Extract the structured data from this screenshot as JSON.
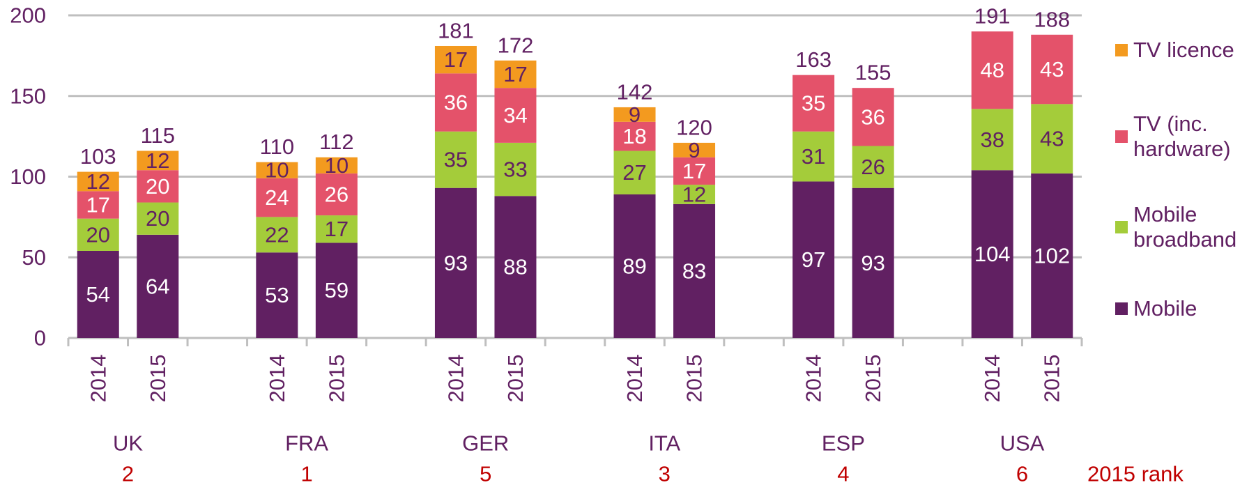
{
  "chart_data": {
    "type": "stacked_bar",
    "categories": [
      "2014",
      "2015",
      null,
      "2014",
      "2015",
      null,
      "2014",
      "2015",
      null,
      "2014",
      "2015",
      null,
      "2014",
      "2015",
      null,
      "2014",
      "2015"
    ],
    "groups": [
      "UK",
      "FRA",
      "GER",
      "ITA",
      "ESP",
      "USA"
    ],
    "ranks": [
      2,
      1,
      5,
      3,
      4,
      6
    ],
    "rank_label": "2015 rank",
    "series": [
      {
        "name": "Mobile",
        "color": "#612062",
        "label_color": "#ffffff",
        "values": [
          54,
          64,
          null,
          53,
          59,
          null,
          93,
          88,
          null,
          89,
          83,
          null,
          97,
          93,
          null,
          104,
          102
        ]
      },
      {
        "name": "Mobile broadband",
        "color": "#a4cc3a",
        "label_color": "#612062",
        "values": [
          20,
          20,
          null,
          22,
          17,
          null,
          35,
          33,
          null,
          27,
          12,
          null,
          31,
          26,
          null,
          38,
          43
        ]
      },
      {
        "name": "TV (inc. hardware)",
        "color": "#e4526a",
        "label_color": "#ffffff",
        "values": [
          17,
          20,
          null,
          24,
          26,
          null,
          36,
          34,
          null,
          18,
          17,
          null,
          35,
          36,
          null,
          48,
          43
        ]
      },
      {
        "name": "TV licence",
        "color": "#f39a1f",
        "label_color": "#612062",
        "values": [
          12,
          12,
          null,
          10,
          10,
          null,
          17,
          17,
          null,
          9,
          9,
          null,
          null,
          null,
          null,
          null,
          null
        ]
      }
    ],
    "totals": [
      103,
      115,
      null,
      110,
      112,
      null,
      181,
      172,
      null,
      142,
      120,
      null,
      163,
      155,
      null,
      191,
      188
    ],
    "ylim": [
      0,
      200
    ],
    "yticks": [
      0,
      50,
      100,
      150,
      200
    ],
    "grid": true,
    "legend": "right"
  }
}
